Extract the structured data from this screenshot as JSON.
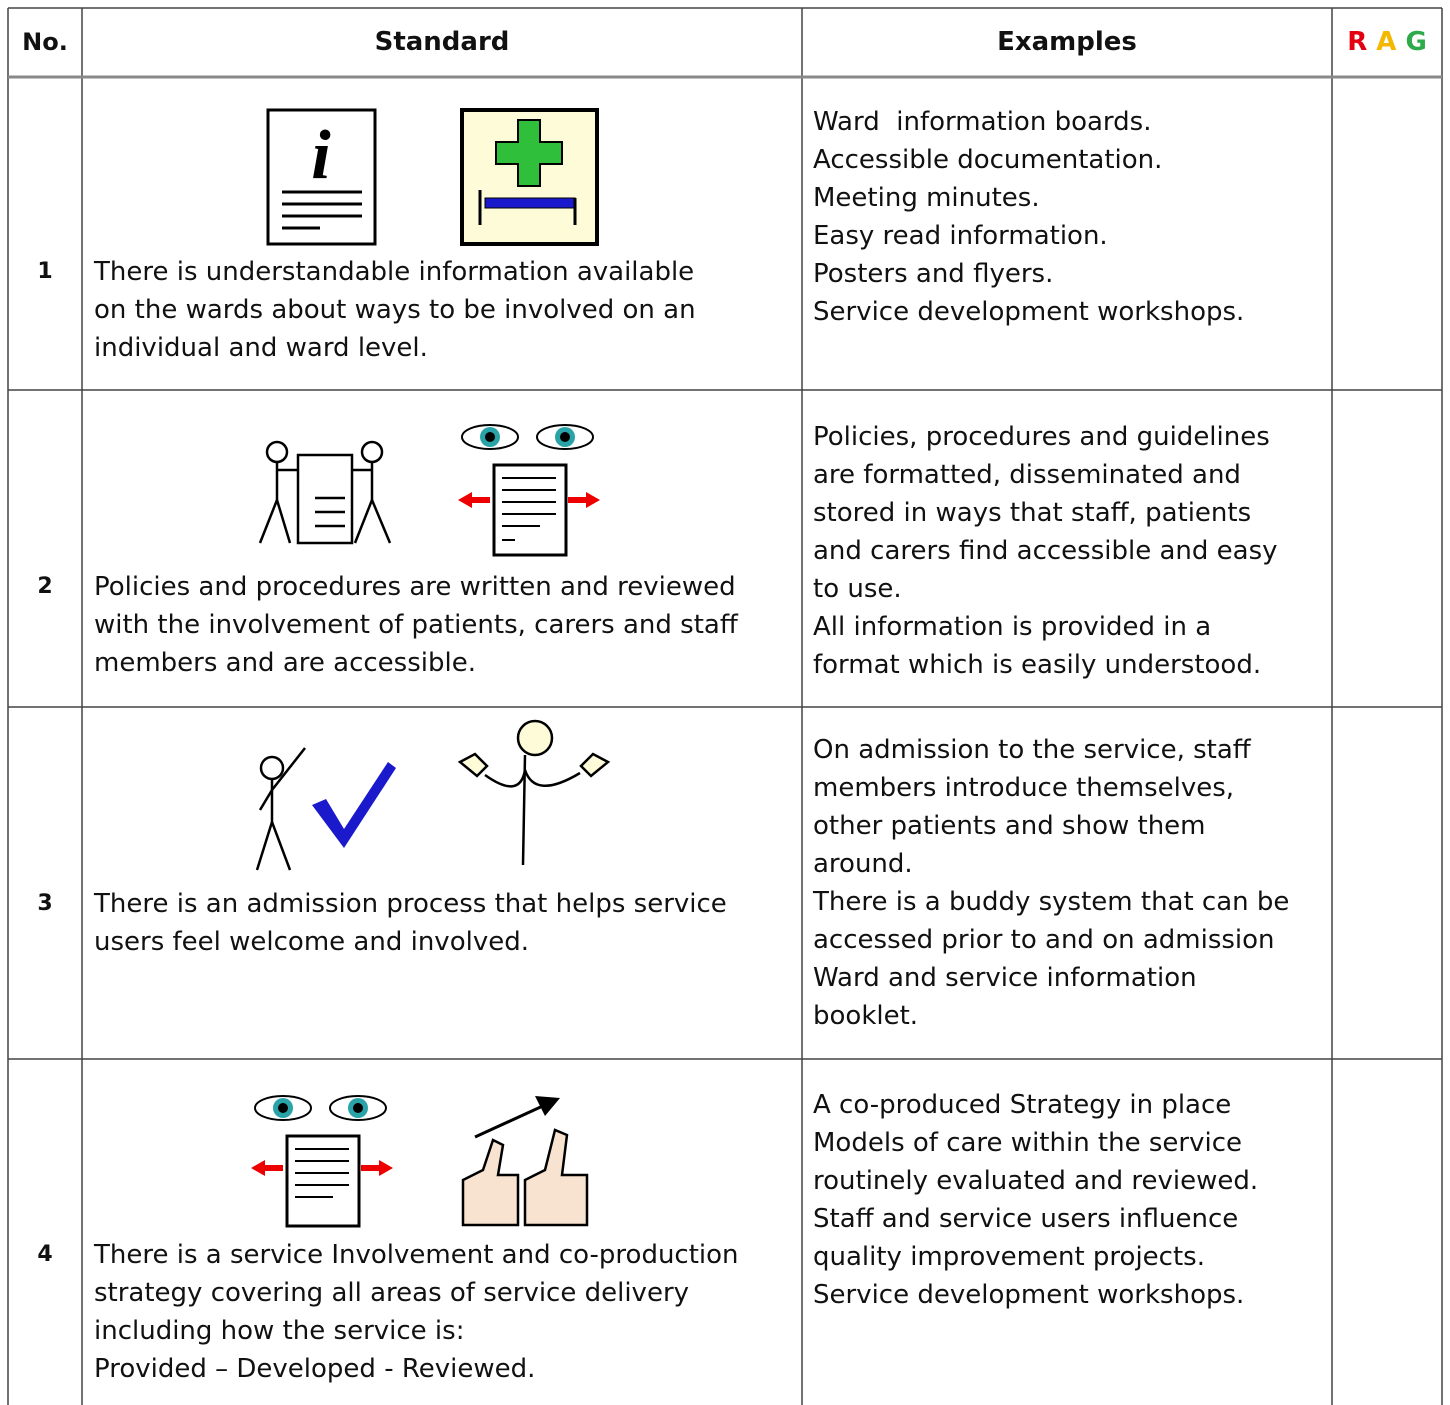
{
  "header": {
    "number": "No.",
    "standard": "Standard",
    "examples": "Examples",
    "rag": [
      "R",
      "A",
      "G"
    ]
  },
  "rows": [
    {
      "number": "1",
      "standard": [
        "There is understandable information available",
        "on the wards about ways to be involved on an",
        "individual and ward level."
      ],
      "examples": [
        "Ward  information boards.",
        "Accessible documentation.",
        "Meeting minutes.",
        "Easy read information.",
        "Posters and flyers.",
        "Service development workshops."
      ]
    },
    {
      "number": "2",
      "standard": [
        "Policies and procedures are written and reviewed",
        "with the involvement of patients, carers and staff",
        "members and are accessible."
      ],
      "examples": [
        "Policies, procedures and guidelines",
        "are formatted, disseminated and",
        "stored in ways that staff, patients",
        "and carers find accessible and easy",
        "to use.",
        "All information is provided in a",
        "format which is easily understood."
      ]
    },
    {
      "number": "3",
      "standard": [
        "There is an admission process that helps service",
        "users feel welcome and involved."
      ],
      "examples": [
        "On admission to the service, staff",
        "members introduce themselves,",
        "other patients and show them",
        "around.",
        "There is a buddy system that can be",
        "accessed prior to and on admission",
        "Ward and service information",
        "booklet."
      ]
    },
    {
      "number": "4",
      "standard": [
        "There is a service Involvement and co-production",
        "strategy covering all areas of service delivery",
        "including how the service is:",
        "Provided – Developed - Reviewed."
      ],
      "examples": [
        "A co-produced Strategy in place",
        "Models of care within the service",
        "routinely evaluated and reviewed.",
        "Staff and service users influence",
        "quality improvement projects.",
        "Service development workshops."
      ]
    }
  ]
}
